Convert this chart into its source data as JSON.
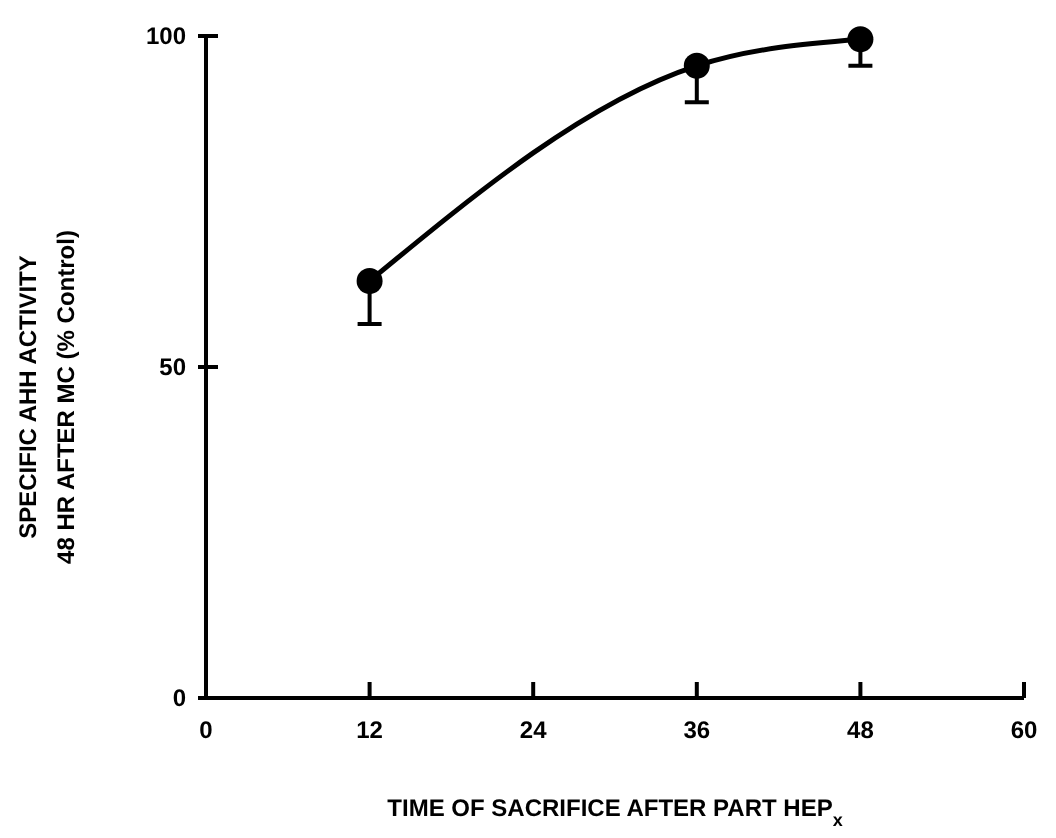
{
  "chart_data": {
    "type": "line",
    "xlabel": "TIME OF SACRIFICE AFTER PART HEP$_{x}$",
    "ylabel": "SPECIFIC AHH ACTIVITY\n48 HR AFTER MC (% Control)",
    "x": [
      12,
      36,
      48
    ],
    "series": [
      {
        "color": "#000000",
        "values": [
          63,
          95.5,
          99.5
        ],
        "errors": [
          [
            56.5,
            63
          ],
          [
            90,
            95.5
          ],
          [
            95.5,
            99.5
          ]
        ]
      }
    ],
    "xlim": [
      0,
      60
    ],
    "xticks": [
      0,
      12,
      24,
      36,
      48,
      60
    ],
    "ylim": [
      0,
      100
    ],
    "yticks": [
      0,
      50,
      100
    ],
    "marker": "circle",
    "line_style": "solid",
    "grid": false
  }
}
